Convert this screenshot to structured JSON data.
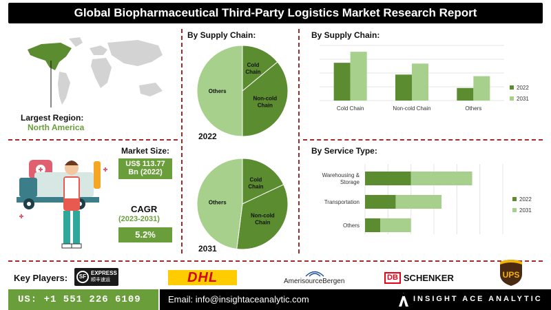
{
  "title": "Global Biopharmaceutical Third-Party Logistics Market Research Report",
  "region": {
    "label": "Largest Region:",
    "value": "North America"
  },
  "market_size": {
    "label": "Market Size:",
    "value_line1": "US$ 113.77",
    "value_line2": "Bn (2022)"
  },
  "cagr": {
    "label": "CAGR",
    "period": "(2023-2031)",
    "value": "5.2%"
  },
  "key_players_label": "Key Players:",
  "players": {
    "sf": "EXPRESS",
    "sf_sub": "顺丰速运",
    "dhl": "DHL",
    "amerisource": "AmerisourceBergen",
    "db": "DB",
    "schenker": "SCHENKER",
    "ups": "UPS"
  },
  "footer": {
    "phone": "US: +1 551 226 6109",
    "email": "Email: info@insightaceanalytic.com",
    "brand": "INSIGHT ACE ANALYTIC"
  },
  "colors": {
    "dark_green": "#5b8c2f",
    "light_green": "#a8d08d",
    "mid_green": "#8fbc6a",
    "accent": "#6a9e3a",
    "divider": "#a12a2a"
  },
  "chart_data": [
    {
      "type": "pie",
      "title": "By Supply Chain:",
      "label": "2022",
      "slices": [
        {
          "name": "Cold Chain",
          "value": 14
        },
        {
          "name": "Non-cold Chain",
          "value": 36
        },
        {
          "name": "Others",
          "value": 50
        }
      ]
    },
    {
      "type": "pie",
      "title": "",
      "label": "2031",
      "slices": [
        {
          "name": "Cold Chain",
          "value": 18
        },
        {
          "name": "Non-cold Chain",
          "value": 34
        },
        {
          "name": "Others",
          "value": 48
        }
      ]
    },
    {
      "type": "bar",
      "title": "By Supply Chain:",
      "categories": [
        "Cold Chain",
        "Non-cold Chain",
        "Others"
      ],
      "series": [
        {
          "name": "2022",
          "values": [
            48,
            33,
            16
          ]
        },
        {
          "name": "2031",
          "values": [
            62,
            47,
            31
          ]
        }
      ],
      "ylim": [
        0,
        70
      ]
    },
    {
      "type": "bar",
      "orientation": "horizontal",
      "title": "By Service Type:",
      "categories": [
        "Warehousing & Storage",
        "Transportation",
        "Others"
      ],
      "series": [
        {
          "name": "2022",
          "values": [
            30,
            20,
            10
          ]
        },
        {
          "name": "2031",
          "values": [
            40,
            30,
            20
          ]
        }
      ]
    }
  ]
}
